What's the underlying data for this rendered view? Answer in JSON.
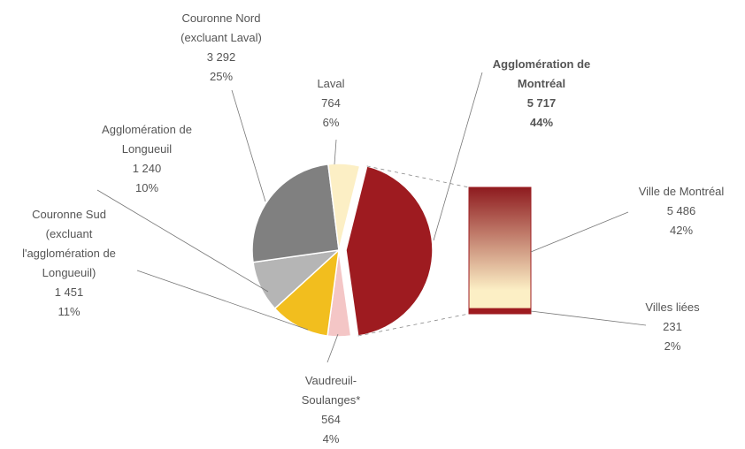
{
  "chart_data": {
    "type": "pie-of-bar",
    "categories": [
      "Agglomération de Montréal",
      "Vaudreuil-Soulanges*",
      "Couronne Sud (excluant l'agglomération de Longueuil)",
      "Agglomération de Longueuil",
      "Couronne Nord (excluant Laval)",
      "Laval"
    ],
    "values": [
      5717,
      564,
      1451,
      1240,
      3292,
      764
    ],
    "value_labels": [
      "5 717",
      "564",
      "1 451",
      "1 240",
      "3 292",
      "764"
    ],
    "shares": [
      44,
      4,
      11,
      10,
      25,
      6
    ],
    "share_labels": [
      "44%",
      "4%",
      "11%",
      "10%",
      "25%",
      "6%"
    ],
    "colors": [
      "#9e1b20",
      "#f4c6c6",
      "#f2be1e",
      "#b5b5b5",
      "#808080",
      "#fcefc5"
    ],
    "bar": {
      "categories": [
        "Ville de Montréal",
        "Villes liées"
      ],
      "values": [
        5486,
        231
      ],
      "value_labels": [
        "5 486",
        "231"
      ],
      "shares": [
        42,
        2
      ],
      "share_labels": [
        "42%",
        "2%"
      ],
      "colors": [
        "#8e1b1f",
        "#9e1b20"
      ],
      "gradient_end": "#fcefc5"
    }
  }
}
